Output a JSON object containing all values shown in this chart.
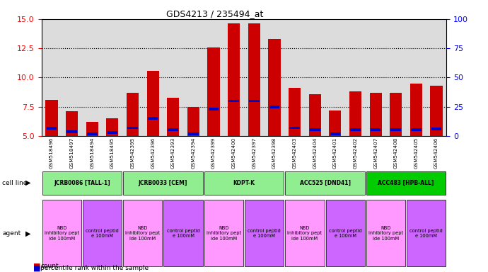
{
  "title": "GDS4213 / 235494_at",
  "samples": [
    "GSM518496",
    "GSM518497",
    "GSM518494",
    "GSM518495",
    "GSM542395",
    "GSM542396",
    "GSM542393",
    "GSM542394",
    "GSM542399",
    "GSM542400",
    "GSM542397",
    "GSM542398",
    "GSM542403",
    "GSM542404",
    "GSM542401",
    "GSM542402",
    "GSM542407",
    "GSM542408",
    "GSM542405",
    "GSM542406"
  ],
  "red_values": [
    8.1,
    7.1,
    6.2,
    6.5,
    8.7,
    10.6,
    8.3,
    7.5,
    12.6,
    14.6,
    14.6,
    13.3,
    9.1,
    8.6,
    7.2,
    8.8,
    8.7,
    8.7,
    9.5,
    9.3
  ],
  "blue_values": [
    5.65,
    5.35,
    5.2,
    5.3,
    5.7,
    6.5,
    5.55,
    5.2,
    7.3,
    8.0,
    8.0,
    7.5,
    5.7,
    5.55,
    5.2,
    5.55,
    5.55,
    5.55,
    5.55,
    5.6
  ],
  "cell_lines": [
    {
      "label": "JCRB0086 [TALL-1]",
      "start": 0,
      "end": 4,
      "color": "#90EE90"
    },
    {
      "label": "JCRB0033 [CEM]",
      "start": 4,
      "end": 8,
      "color": "#90EE90"
    },
    {
      "label": "KOPT-K",
      "start": 8,
      "end": 12,
      "color": "#90EE90"
    },
    {
      "label": "ACC525 [DND41]",
      "start": 12,
      "end": 16,
      "color": "#90EE90"
    },
    {
      "label": "ACC483 [HPB-ALL]",
      "start": 16,
      "end": 20,
      "color": "#00CC00"
    }
  ],
  "agents": [
    {
      "label": "NBD\ninhibitory pept\nide 100mM",
      "start": 0,
      "end": 2,
      "color": "#FF99FF"
    },
    {
      "label": "control peptid\ne 100mM",
      "start": 2,
      "end": 4,
      "color": "#CC66FF"
    },
    {
      "label": "NBD\ninhibitory pept\nide 100mM",
      "start": 4,
      "end": 6,
      "color": "#FF99FF"
    },
    {
      "label": "control peptid\ne 100mM",
      "start": 6,
      "end": 8,
      "color": "#CC66FF"
    },
    {
      "label": "NBD\ninhibitory pept\nide 100mM",
      "start": 8,
      "end": 10,
      "color": "#FF99FF"
    },
    {
      "label": "control peptid\ne 100mM",
      "start": 10,
      "end": 12,
      "color": "#CC66FF"
    },
    {
      "label": "NBD\ninhibitory pept\nide 100mM",
      "start": 12,
      "end": 14,
      "color": "#FF99FF"
    },
    {
      "label": "control peptid\ne 100mM",
      "start": 14,
      "end": 16,
      "color": "#CC66FF"
    },
    {
      "label": "NBD\ninhibitory pept\nide 100mM",
      "start": 16,
      "end": 18,
      "color": "#FF99FF"
    },
    {
      "label": "control peptid\ne 100mM",
      "start": 18,
      "end": 20,
      "color": "#CC66FF"
    }
  ],
  "ylim_left": [
    5,
    15
  ],
  "ylim_right": [
    0,
    100
  ],
  "yticks_left": [
    5,
    7.5,
    10,
    12.5,
    15
  ],
  "yticks_right": [
    0,
    25,
    50,
    75,
    100
  ],
  "grid_lines": [
    7.5,
    10.0,
    12.5
  ],
  "bar_color": "#CC0000",
  "blue_color": "#0000CC",
  "bg_color": "#DCDCDC",
  "bar_width": 0.6
}
